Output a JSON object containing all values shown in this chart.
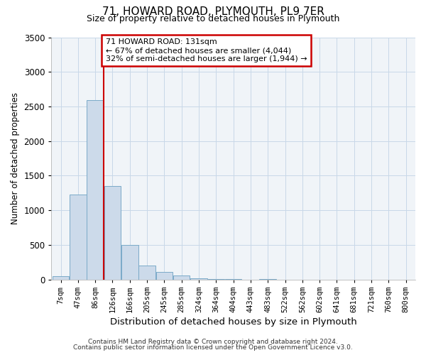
{
  "title": "71, HOWARD ROAD, PLYMOUTH, PL9 7ER",
  "subtitle": "Size of property relative to detached houses in Plymouth",
  "xlabel": "Distribution of detached houses by size in Plymouth",
  "ylabel": "Number of detached properties",
  "bar_color": "#ccdaea",
  "bar_edge_color": "#7aaac8",
  "bin_labels": [
    "7sqm",
    "47sqm",
    "86sqm",
    "126sqm",
    "166sqm",
    "205sqm",
    "245sqm",
    "285sqm",
    "324sqm",
    "364sqm",
    "404sqm",
    "443sqm",
    "483sqm",
    "522sqm",
    "562sqm",
    "602sqm",
    "641sqm",
    "681sqm",
    "721sqm",
    "760sqm",
    "800sqm"
  ],
  "bar_heights": [
    50,
    1230,
    2590,
    1350,
    500,
    200,
    110,
    55,
    20,
    5,
    2,
    0,
    2,
    0,
    0,
    0,
    0,
    0,
    0,
    0,
    0
  ],
  "ylim": [
    0,
    3500
  ],
  "yticks": [
    0,
    500,
    1000,
    1500,
    2000,
    2500,
    3000,
    3500
  ],
  "vline_bar_index": 3,
  "property_label": "71 HOWARD ROAD: 131sqm",
  "annotation_line1": "← 67% of detached houses are smaller (4,044)",
  "annotation_line2": "32% of semi-detached houses are larger (1,944) →",
  "annotation_box_color": "#ffffff",
  "annotation_box_edge": "#cc0000",
  "vline_color": "#cc0000",
  "grid_color": "#c8d8e8",
  "background_color": "#ffffff",
  "plot_bg_color": "#f0f4f8",
  "footer1": "Contains HM Land Registry data © Crown copyright and database right 2024.",
  "footer2": "Contains public sector information licensed under the Open Government Licence v3.0."
}
